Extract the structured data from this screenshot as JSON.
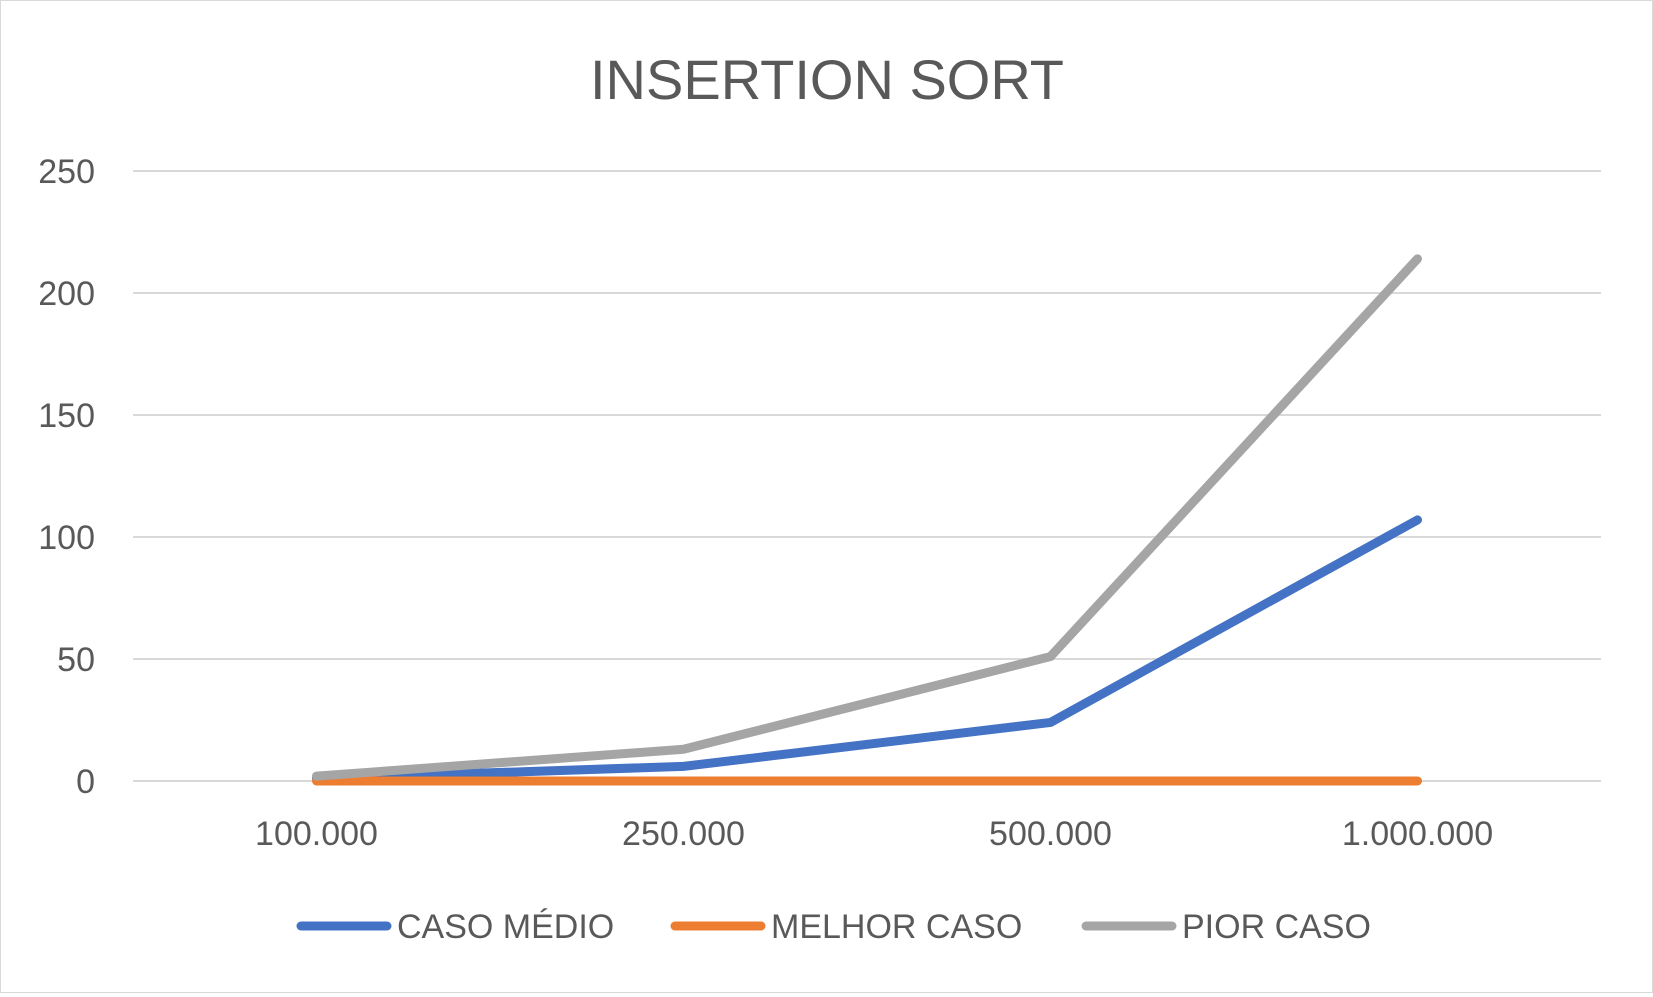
{
  "chart_data": {
    "type": "line",
    "title": "INSERTION SORT",
    "xlabel": "",
    "ylabel": "",
    "categories": [
      "100.000",
      "250.000",
      "500.000",
      "1.000.000"
    ],
    "ylim": [
      0,
      250
    ],
    "yticks": [
      "0",
      "50",
      "100",
      "150",
      "200",
      "250"
    ],
    "ytick_values": [
      0,
      50,
      100,
      150,
      200,
      250
    ],
    "grid": true,
    "legend_position": "bottom",
    "series": [
      {
        "name": "CASO MÉDIO",
        "values": [
          1,
          6,
          24,
          107
        ],
        "color": "#4472C4"
      },
      {
        "name": "MELHOR CASO",
        "values": [
          0,
          0,
          0,
          0
        ],
        "color": "#ED7D31"
      },
      {
        "name": "PIOR CASO",
        "values": [
          2,
          13,
          51,
          214
        ],
        "color": "#A5A5A5"
      }
    ]
  }
}
